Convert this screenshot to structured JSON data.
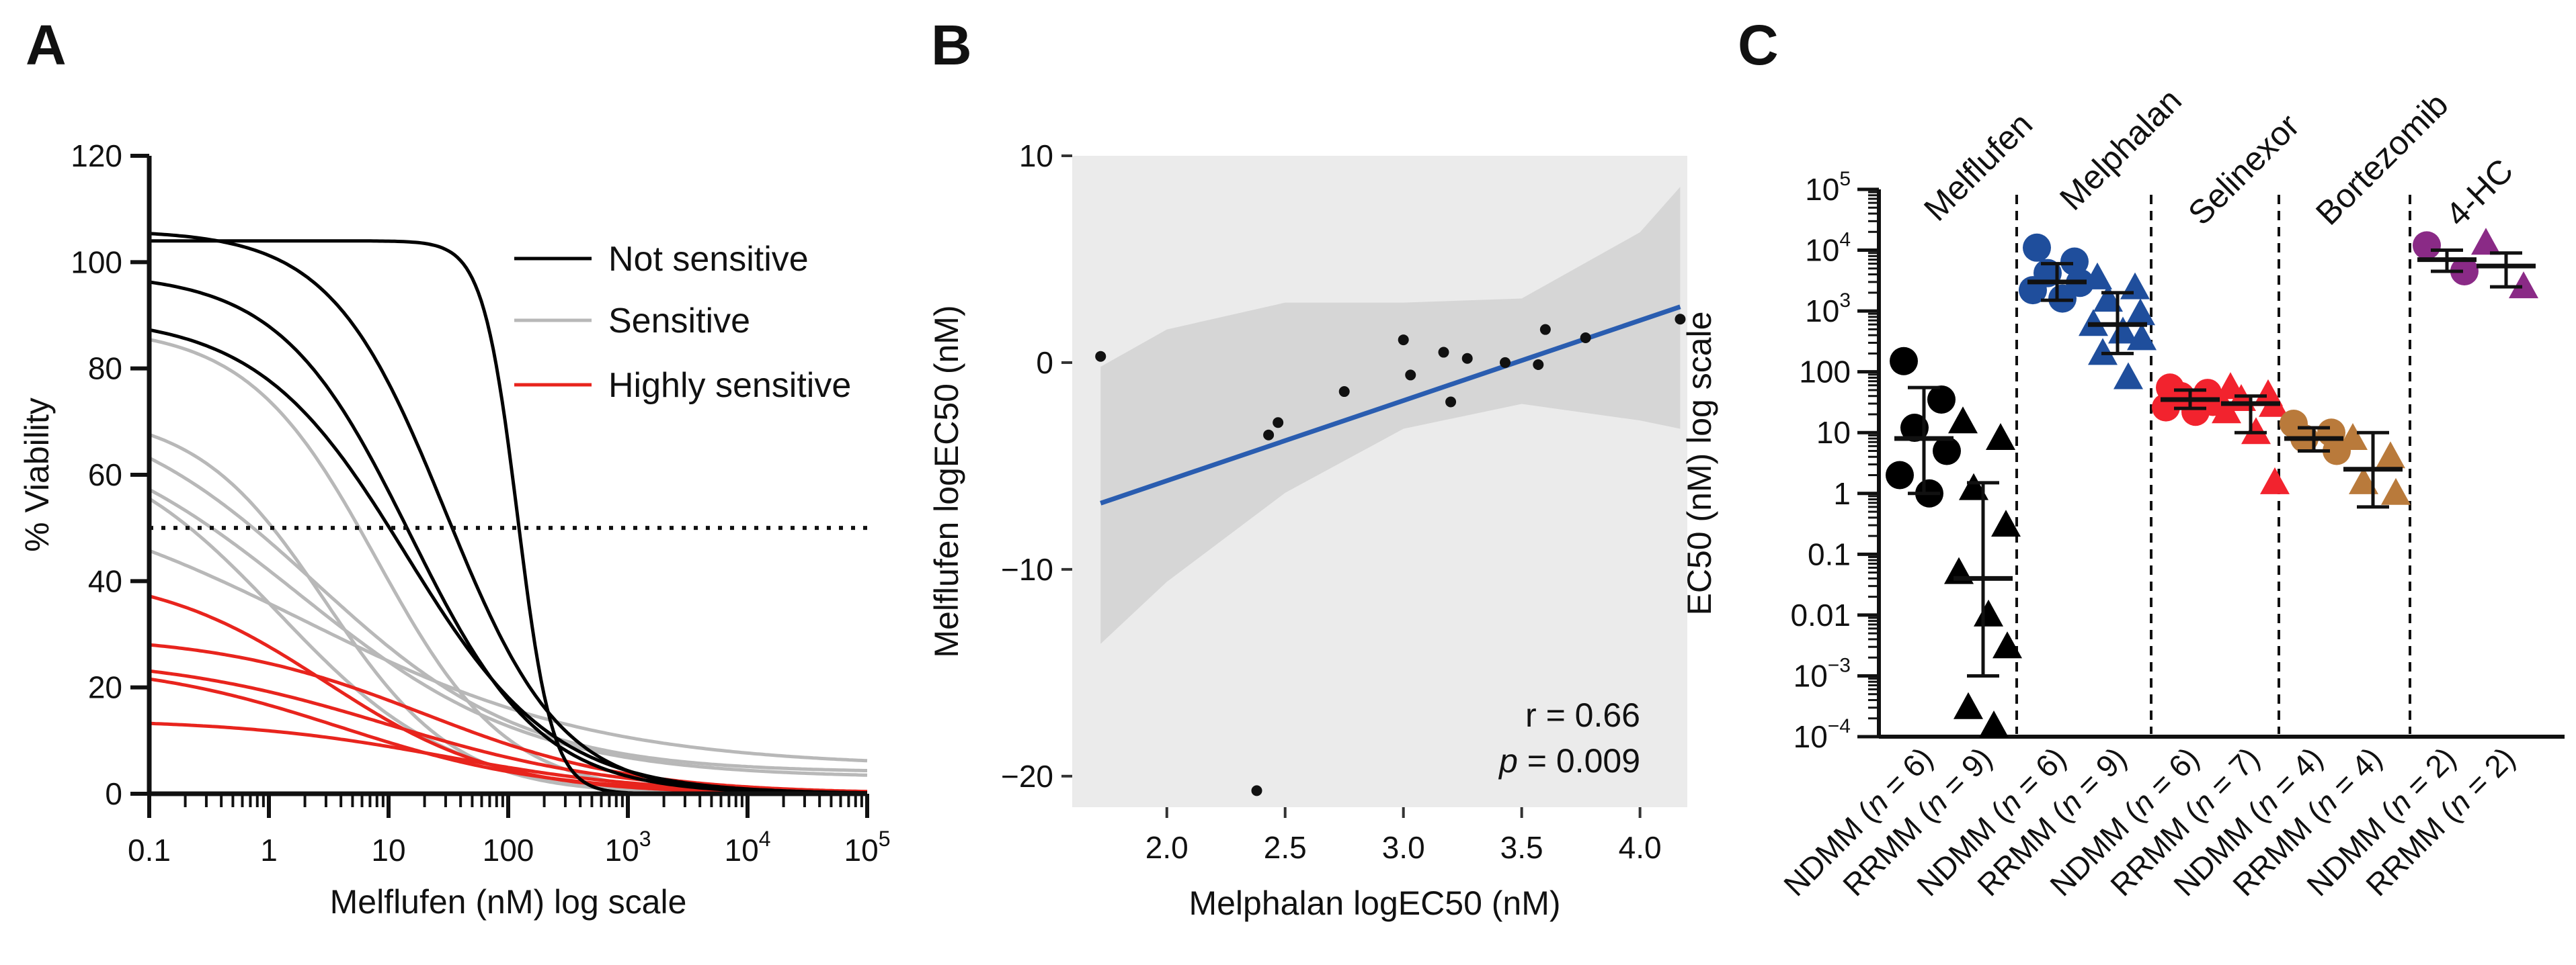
{
  "panels": {
    "A": {
      "letter": "A",
      "chart_data": {
        "type": "line",
        "title": "",
        "xlabel": "Melflufen (nM) log scale",
        "ylabel": "% Viability",
        "xscale": "log",
        "xlim": [
          0.1,
          100000
        ],
        "ylim": [
          0,
          120
        ],
        "xticks": [
          "0.1",
          "1",
          "10",
          "100",
          "10^3",
          "10^4",
          "10^5"
        ],
        "yticks": [
          0,
          20,
          40,
          60,
          80,
          100,
          120
        ],
        "threshold": 50,
        "legend": {
          "position": "top-right",
          "entries": [
            {
              "label": "Not sensitive",
              "color": "#000000"
            },
            {
              "label": "Sensitive",
              "color": "#b8b8b8"
            },
            {
              "label": "Highly sensitive",
              "color": "#e8241d"
            }
          ]
        },
        "series": [
          {
            "group": "Not sensitive",
            "top": 104,
            "bottom": 0,
            "ec50": 120,
            "hill": 3.0
          },
          {
            "group": "Not sensitive",
            "top": 106,
            "bottom": 0,
            "ec50": 30,
            "hill": 0.9
          },
          {
            "group": "Not sensitive",
            "top": 98,
            "bottom": 0,
            "ec50": 15,
            "hill": 0.8
          },
          {
            "group": "Not sensitive",
            "top": 90,
            "bottom": 0,
            "ec50": 14,
            "hill": 0.7
          },
          {
            "group": "Sensitive",
            "top": 88,
            "bottom": 0,
            "ec50": 8,
            "hill": 0.8
          },
          {
            "group": "Sensitive",
            "top": 75,
            "bottom": 4,
            "ec50": 2.5,
            "hill": 0.5
          },
          {
            "group": "Sensitive",
            "top": 72,
            "bottom": 3,
            "ec50": 1.8,
            "hill": 0.45
          },
          {
            "group": "Sensitive",
            "top": 68,
            "bottom": 0,
            "ec50": 1.2,
            "hill": 0.6
          },
          {
            "group": "Sensitive",
            "top": 60,
            "bottom": 5,
            "ec50": 2.0,
            "hill": 0.35
          },
          {
            "group": "Sensitive",
            "top": 72,
            "bottom": 0,
            "ec50": 3.0,
            "hill": 0.8
          },
          {
            "group": "Highly sensitive",
            "top": 42,
            "bottom": 0,
            "ec50": 3.0,
            "hill": 0.6
          },
          {
            "group": "Highly sensitive",
            "top": 30,
            "bottom": 0,
            "ec50": 20,
            "hill": 0.5
          },
          {
            "group": "Highly sensitive",
            "top": 26,
            "bottom": 0,
            "ec50": 10,
            "hill": 0.45
          },
          {
            "group": "Highly sensitive",
            "top": 25,
            "bottom": 0,
            "ec50": 4,
            "hill": 0.5
          },
          {
            "group": "Highly sensitive",
            "top": 14,
            "bottom": 0,
            "ec50": 30,
            "hill": 0.5
          }
        ]
      }
    },
    "B": {
      "letter": "B",
      "chart_data": {
        "type": "scatter",
        "title": "",
        "xlabel": "Melphalan logEC50 (nM)",
        "ylabel": "Melflufen logEC50 (nM)",
        "xlim": [
          1.6,
          4.2
        ],
        "ylim": [
          -21.5,
          10
        ],
        "xticks": [
          "2.0",
          "2.5",
          "3.0",
          "3.5",
          "4.0"
        ],
        "yticks": [
          "10",
          "0",
          "−10",
          "−20"
        ],
        "points": [
          [
            1.72,
            0.3
          ],
          [
            2.38,
            -20.7
          ],
          [
            2.43,
            -3.5
          ],
          [
            2.47,
            -2.9
          ],
          [
            2.75,
            -1.4
          ],
          [
            3.0,
            1.1
          ],
          [
            3.03,
            -0.6
          ],
          [
            3.17,
            0.5
          ],
          [
            3.2,
            -1.9
          ],
          [
            3.27,
            0.2
          ],
          [
            3.43,
            0.0
          ],
          [
            3.57,
            -0.1
          ],
          [
            3.6,
            1.6
          ],
          [
            3.77,
            1.2
          ],
          [
            4.17,
            2.1
          ]
        ],
        "fit": {
          "x": [
            1.72,
            4.17
          ],
          "y": [
            -6.8,
            2.7
          ],
          "color": "#2a5db0"
        },
        "ci_band": {
          "x": [
            1.72,
            2.0,
            2.5,
            3.0,
            3.5,
            4.0,
            4.17
          ],
          "upper": [
            -0.2,
            1.6,
            2.9,
            2.9,
            3.1,
            6.3,
            8.5
          ],
          "lower": [
            -13.6,
            -10.6,
            -6.3,
            -3.2,
            -2.0,
            -2.8,
            -3.2
          ]
        },
        "annotations": {
          "r_text": "r = 0.66",
          "p_letter": "p",
          "p_value": " = 0.009"
        }
      }
    },
    "C": {
      "letter": "C",
      "chart_data": {
        "type": "scatter",
        "title": "",
        "xlabel": "",
        "ylabel": "EC50 (nM) log scale",
        "yscale": "log",
        "ylim": [
          0.0001,
          100000
        ],
        "yticks": [
          {
            "exp": -4,
            "label": "10",
            "sup": "−4"
          },
          {
            "exp": -3,
            "label": "10",
            "sup": "−3"
          },
          {
            "exp": -2,
            "label": "0.01",
            "sup": ""
          },
          {
            "exp": -1,
            "label": "0.1",
            "sup": ""
          },
          {
            "exp": 0,
            "label": "1",
            "sup": ""
          },
          {
            "exp": 1,
            "label": "10",
            "sup": ""
          },
          {
            "exp": 2,
            "label": "100",
            "sup": ""
          },
          {
            "exp": 3,
            "label": "10",
            "sup": "3"
          },
          {
            "exp": 4,
            "label": "10",
            "sup": "4"
          },
          {
            "exp": 5,
            "label": "10",
            "sup": "5"
          }
        ],
        "drugs": [
          {
            "name": "Melflufen",
            "color": "#000000",
            "groups": [
              {
                "label": "NDMM",
                "n": "6",
                "shape": "circle",
                "values": [
                  150,
                  35,
                  12,
                  5,
                  2,
                  1
                ],
                "center": 8,
                "err_low": 1,
                "err_high": 55
              },
              {
                "label": "RRMM",
                "n": "9",
                "shape": "triangle",
                "values": [
                  15,
                  8,
                  1.2,
                  0.3,
                  0.05,
                  0.01,
                  0.003,
                  0.0003,
                  0.00015
                ],
                "center": 0.04,
                "err_low": 0.001,
                "err_high": 1.5
              }
            ]
          },
          {
            "name": "Melphalan",
            "color": "#1f4e9c",
            "groups": [
              {
                "label": "NDMM",
                "n": "6",
                "shape": "circle",
                "values": [
                  11000,
                  6500,
                  4200,
                  2900,
                  2200,
                  1600
                ],
                "center": 3000,
                "err_low": 1500,
                "err_high": 6000
              },
              {
                "label": "RRMM",
                "n": "9",
                "shape": "triangle",
                "values": [
                  3500,
                  2400,
                  1500,
                  900,
                  600,
                  450,
                  350,
                  200,
                  80
                ],
                "center": 600,
                "err_low": 200,
                "err_high": 2000
              }
            ]
          },
          {
            "name": "Selinexor",
            "color": "#f2232e",
            "groups": [
              {
                "label": "NDMM",
                "n": "6",
                "shape": "circle",
                "values": [
                  55,
                  45,
                  40,
                  32,
                  26,
                  22
                ],
                "center": 35,
                "err_low": 25,
                "err_high": 50
              },
              {
                "label": "RRMM",
                "n": "7",
                "shape": "triangle",
                "values": [
                  55,
                  42,
                  35,
                  28,
                  22,
                  10,
                  1.5
                ],
                "center": 30,
                "err_low": 10,
                "err_high": 40
              }
            ]
          },
          {
            "name": "Bortezomib",
            "color": "#b97a3b",
            "groups": [
              {
                "label": "NDMM",
                "n": "4",
                "shape": "circle",
                "values": [
                  14,
                  10,
                  8,
                  5
                ],
                "center": 8,
                "err_low": 5,
                "err_high": 12
              },
              {
                "label": "RRMM",
                "n": "4",
                "shape": "triangle",
                "values": [
                  8,
                  4,
                  1.5,
                  1.0
                ],
                "center": 2.5,
                "err_low": 0.6,
                "err_high": 10
              }
            ]
          },
          {
            "name": "4-HC",
            "color": "#8a2a86",
            "groups": [
              {
                "label": "NDMM",
                "n": "2",
                "shape": "circle",
                "values": [
                  12000,
                  4500
                ],
                "center": 7000,
                "err_low": 4500,
                "err_high": 10000
              },
              {
                "label": "RRMM",
                "n": "2",
                "shape": "triangle",
                "values": [
                  13000,
                  2500
                ],
                "center": 5500,
                "err_low": 2500,
                "err_high": 9000
              }
            ]
          }
        ]
      }
    }
  }
}
